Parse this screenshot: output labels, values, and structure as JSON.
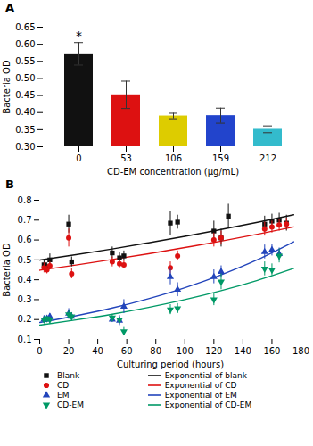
{
  "chart_data": [
    {
      "type": "bar",
      "title": "A",
      "categories": [
        "0",
        "53",
        "106",
        "159",
        "212"
      ],
      "values": [
        0.572,
        0.452,
        0.39,
        0.391,
        0.351
      ],
      "errors": [
        0.033,
        0.04,
        0.008,
        0.022,
        0.01
      ],
      "colors": [
        "#111111",
        "#dd1111",
        "#ddcc00",
        "#2244cc",
        "#33bbcc"
      ],
      "xlabel": "CD-EM concentration (μg/mL)",
      "ylabel": "Bacteria OD",
      "ylim": [
        0.3,
        0.65
      ],
      "yticks": [
        {
          "value": 0.3,
          "label": "0.30"
        },
        0.35,
        {
          "value": 0.4,
          "label": "0.40"
        },
        0.45,
        {
          "value": 0.5,
          "label": "0.50"
        },
        0.55,
        {
          "value": 0.6,
          "label": "0.60"
        },
        0.65
      ],
      "annotations": [
        {
          "text": "*",
          "x": "0"
        }
      ]
    },
    {
      "type": "scatter",
      "title": "B",
      "xlabel": "Culturing period (hours)",
      "ylabel": "Bacteria OD",
      "xlim": [
        0,
        180
      ],
      "xticks": [
        0,
        20,
        40,
        60,
        80,
        100,
        120,
        140,
        160,
        180
      ],
      "ylim": [
        0.1,
        0.8
      ],
      "yticks": [
        0.1,
        0.2,
        0.3,
        0.4,
        0.5,
        0.6,
        0.7,
        0.8
      ],
      "legend": "bottom",
      "series": [
        {
          "name": "Blank",
          "type": "scatter",
          "marker": "square",
          "color": "#111111",
          "x": [
            3,
            5,
            7,
            20,
            22,
            50,
            55,
            58,
            90,
            95,
            120,
            125,
            130,
            155,
            160,
            165,
            170
          ],
          "values": [
            0.475,
            0.465,
            0.5,
            0.68,
            0.49,
            0.535,
            0.51,
            0.52,
            0.685,
            0.69,
            0.645,
            0.61,
            0.72,
            0.68,
            0.695,
            0.7,
            0.685
          ],
          "errors": [
            0.025,
            0.02,
            0.03,
            0.045,
            0.025,
            0.03,
            0.025,
            0.025,
            0.06,
            0.035,
            0.05,
            0.045,
            0.06,
            0.04,
            0.035,
            0.035,
            0.04
          ]
        },
        {
          "name": "CD",
          "type": "scatter",
          "marker": "circle",
          "color": "#dd1111",
          "x": [
            3,
            5,
            7,
            20,
            22,
            50,
            55,
            58,
            90,
            95,
            120,
            125,
            155,
            160,
            165,
            170
          ],
          "values": [
            0.46,
            0.45,
            0.47,
            0.61,
            0.43,
            0.49,
            0.48,
            0.475,
            0.46,
            0.52,
            0.6,
            0.61,
            0.655,
            0.665,
            0.675,
            0.68
          ],
          "errors": [
            0.025,
            0.02,
            0.02,
            0.045,
            0.025,
            0.025,
            0.02,
            0.02,
            0.03,
            0.025,
            0.035,
            0.035,
            0.035,
            0.03,
            0.03,
            0.03
          ]
        },
        {
          "name": "EM",
          "type": "scatter",
          "marker": "triangle_up",
          "color": "#2244bb",
          "x": [
            3,
            5,
            7,
            20,
            22,
            50,
            55,
            58,
            90,
            95,
            120,
            125,
            155,
            160,
            165
          ],
          "values": [
            0.2,
            0.205,
            0.215,
            0.23,
            0.215,
            0.2,
            0.195,
            0.265,
            0.415,
            0.35,
            0.415,
            0.44,
            0.54,
            0.55,
            0.53
          ],
          "errors": [
            0.02,
            0.015,
            0.015,
            0.025,
            0.02,
            0.015,
            0.025,
            0.035,
            0.04,
            0.035,
            0.035,
            0.03,
            0.035,
            0.03,
            0.03
          ]
        },
        {
          "name": "CD-EM",
          "type": "scatter",
          "marker": "triangle_down",
          "color": "#009966",
          "x": [
            3,
            5,
            7,
            20,
            22,
            50,
            55,
            58,
            90,
            95,
            120,
            125,
            155,
            160,
            165
          ],
          "values": [
            0.2,
            0.205,
            0.2,
            0.225,
            0.215,
            0.21,
            0.2,
            0.14,
            0.25,
            0.255,
            0.3,
            0.39,
            0.455,
            0.45,
            0.52
          ],
          "errors": [
            0.015,
            0.012,
            0.012,
            0.02,
            0.018,
            0.015,
            0.012,
            0.02,
            0.025,
            0.025,
            0.03,
            0.04,
            0.035,
            0.03,
            0.035
          ]
        },
        {
          "name": "Exponential of blank",
          "type": "line",
          "color": "#111111",
          "x": [
            0,
            25,
            50,
            75,
            100,
            125,
            150,
            175
          ],
          "values": [
            0.499,
            0.526,
            0.555,
            0.586,
            0.618,
            0.653,
            0.689,
            0.727
          ]
        },
        {
          "name": "Exponential of CD",
          "type": "line",
          "color": "#dd1111",
          "x": [
            0,
            25,
            50,
            75,
            100,
            125,
            150,
            175
          ],
          "values": [
            0.448,
            0.474,
            0.502,
            0.531,
            0.562,
            0.594,
            0.629,
            0.666
          ]
        },
        {
          "name": "Exponential of EM",
          "type": "line",
          "color": "#2244bb",
          "x": [
            0,
            25,
            50,
            75,
            100,
            125,
            150,
            175
          ],
          "values": [
            0.185,
            0.219,
            0.258,
            0.305,
            0.36,
            0.425,
            0.501,
            0.591
          ]
        },
        {
          "name": "Exponential of CD-EM",
          "type": "line",
          "color": "#009966",
          "x": [
            0,
            25,
            50,
            75,
            100,
            125,
            150,
            175
          ],
          "values": [
            0.172,
            0.198,
            0.227,
            0.261,
            0.3,
            0.345,
            0.397,
            0.457
          ]
        }
      ]
    }
  ]
}
